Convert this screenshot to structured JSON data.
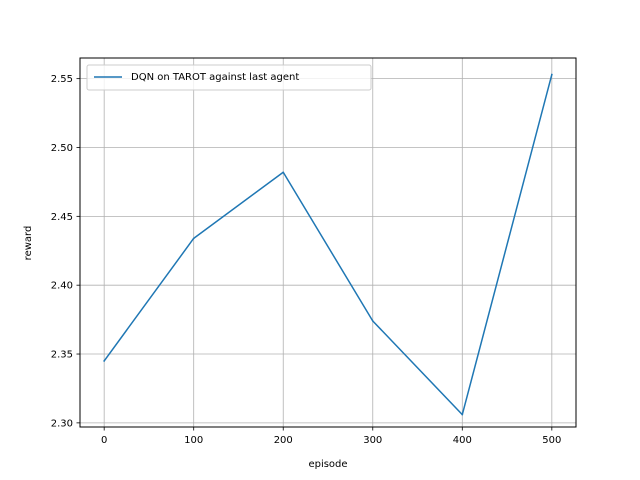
{
  "chart_data": {
    "type": "line",
    "title": "",
    "xlabel": "episode",
    "ylabel": "reward",
    "xlim": [
      -27,
      527
    ],
    "ylim": [
      2.297,
      2.565
    ],
    "xticks": [
      0,
      100,
      200,
      300,
      400,
      500
    ],
    "yticks": [
      2.3,
      2.35,
      2.4,
      2.45,
      2.5,
      2.55
    ],
    "xtick_labels": [
      "0",
      "100",
      "200",
      "300",
      "400",
      "500"
    ],
    "ytick_labels": [
      "2.30",
      "2.35",
      "2.40",
      "2.45",
      "2.50",
      "2.55"
    ],
    "grid": true,
    "legend_position": "top-left",
    "series": [
      {
        "name": "DQN on TAROT against last agent",
        "color": "#1f77b4",
        "x": [
          0,
          100,
          200,
          300,
          400,
          500
        ],
        "y": [
          2.345,
          2.434,
          2.482,
          2.374,
          2.306,
          2.553
        ]
      }
    ]
  }
}
